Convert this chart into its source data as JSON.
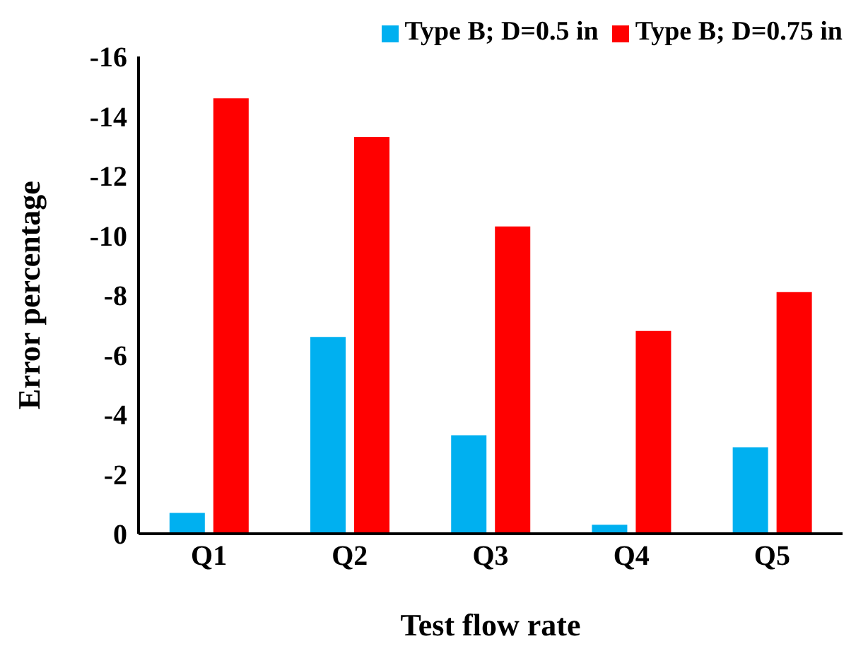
{
  "chart_data": {
    "type": "bar",
    "xlabel": "Test flow rate",
    "ylabel": "Error percentage",
    "categories": [
      "Q1",
      "Q2",
      "Q3",
      "Q4",
      "Q5"
    ],
    "series": [
      {
        "name": "Type B; D=0.5 in",
        "color": "#00b0f0",
        "values": [
          -0.7,
          -6.6,
          -3.3,
          -0.3,
          -2.9
        ]
      },
      {
        "name": "Type B; D=0.75 in",
        "color": "#ff0000",
        "values": [
          -14.6,
          -13.3,
          -10.3,
          -6.8,
          -8.1
        ]
      }
    ],
    "ylim": [
      0,
      -16
    ],
    "yticks": [
      0,
      -2,
      -4,
      -6,
      -8,
      -10,
      -12,
      -14,
      -16
    ],
    "grid": false,
    "legend": "top right"
  }
}
